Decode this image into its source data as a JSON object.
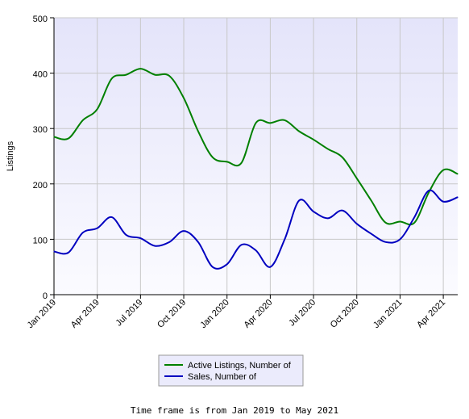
{
  "chart_data": {
    "type": "line",
    "ylabel": "Listings",
    "ylim": [
      0,
      500
    ],
    "yticks": [
      0,
      100,
      200,
      300,
      400,
      500
    ],
    "xticks": [
      "Jan 2019",
      "Apr 2019",
      "Jul 2019",
      "Oct 2019",
      "Jan 2020",
      "Apr 2020",
      "Jul 2020",
      "Oct 2020",
      "Jan 2021",
      "Apr 2021"
    ],
    "x": [
      "Jan 2019",
      "Feb 2019",
      "Mar 2019",
      "Apr 2019",
      "May 2019",
      "Jun 2019",
      "Jul 2019",
      "Aug 2019",
      "Sep 2019",
      "Oct 2019",
      "Nov 2019",
      "Dec 2019",
      "Jan 2020",
      "Feb 2020",
      "Mar 2020",
      "Apr 2020",
      "May 2020",
      "Jun 2020",
      "Jul 2020",
      "Aug 2020",
      "Sep 2020",
      "Oct 2020",
      "Nov 2020",
      "Dec 2020",
      "Jan 2021",
      "Feb 2021",
      "Mar 2021",
      "Apr 2021",
      "May 2021"
    ],
    "series": [
      {
        "name": "Active Listings, Number of",
        "color": "#008000",
        "values": [
          285,
          282,
          315,
          335,
          390,
          397,
          408,
          397,
          395,
          355,
          295,
          248,
          240,
          238,
          310,
          310,
          315,
          295,
          280,
          263,
          248,
          210,
          170,
          130,
          132,
          130,
          185,
          225,
          218
        ]
      },
      {
        "name": "Sales, Number of",
        "color": "#0000c0",
        "values": [
          78,
          76,
          112,
          120,
          140,
          108,
          102,
          88,
          95,
          115,
          95,
          50,
          55,
          90,
          80,
          50,
          100,
          170,
          150,
          138,
          152,
          128,
          110,
          95,
          100,
          140,
          188,
          168,
          176
        ]
      }
    ],
    "grid": true,
    "legend_position": "bottom-center"
  },
  "footnote": "Time frame is from Jan 2019 to May 2021"
}
